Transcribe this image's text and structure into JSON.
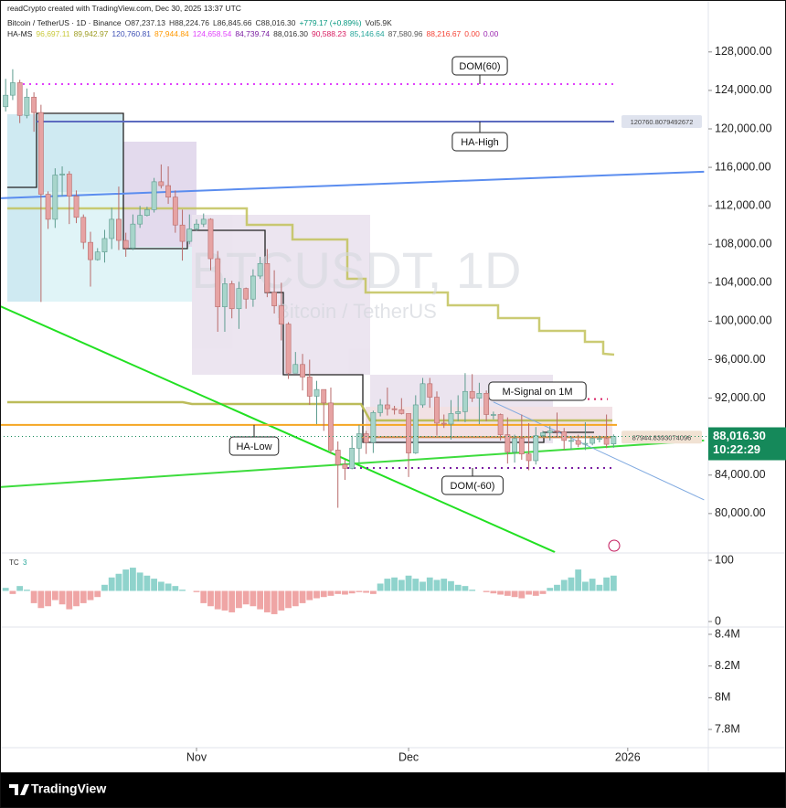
{
  "header": {
    "credit": "readCrypto created with TradingView.com, Dec 30, 2025 13:37 UTC",
    "symbol": "Bitcoin / TetherUS · 1D · Binance",
    "ohlc": [
      "O87,237.13",
      "H88,224.76",
      "L86,845.66",
      "C88,016.30",
      "+779.17 (+0.89%)",
      "Vol5.9K"
    ],
    "indicator": "HA-MS",
    "indicator_values": [
      {
        "text": "96,697.11",
        "color": "#c9c93a"
      },
      {
        "text": "89,942.97",
        "color": "#9e9d24"
      },
      {
        "text": "120,760.81",
        "color": "#3f51b5"
      },
      {
        "text": "87,944.84",
        "color": "#ff9800"
      },
      {
        "text": "124,658.54",
        "color": "#e040fb"
      },
      {
        "text": "84,739.74",
        "color": "#7b1fa2"
      },
      {
        "text": "88,016.30",
        "color": "#333333"
      },
      {
        "text": "90,588.23",
        "color": "#d81b60"
      },
      {
        "text": "85,146.64",
        "color": "#26a69a"
      },
      {
        "text": "87,580.96",
        "color": "#555555"
      },
      {
        "text": "88,216.67",
        "color": "#f44336"
      },
      {
        "text": "0.00",
        "color": "#f44336"
      },
      {
        "text": "0.00",
        "color": "#9c27b0"
      }
    ],
    "watermark": "BTCUSDT, 1D",
    "watermark_sub": "Bitcoin / TetherUS",
    "brand": "TradingView"
  },
  "chart_data": [
    {
      "type": "candlestick",
      "up_color": "#a8d5cb",
      "down_color": "#e6a3a3",
      "x": [
        0,
        1,
        2,
        3,
        4,
        5,
        6,
        7,
        8,
        9,
        10,
        11,
        12,
        13,
        14,
        15,
        16,
        17,
        18,
        19,
        20,
        21,
        22,
        23,
        24,
        25,
        26,
        27,
        28,
        29,
        30,
        31,
        32,
        33,
        34,
        35,
        36,
        37,
        38,
        39,
        40,
        41,
        42,
        43,
        44,
        45,
        46,
        47,
        48,
        49,
        50,
        51,
        52,
        53,
        54,
        55,
        56,
        57,
        58,
        59,
        60,
        61,
        62,
        63,
        64,
        65,
        66,
        67,
        68,
        69,
        70,
        71,
        72,
        73,
        74,
        75,
        76,
        77,
        78,
        79,
        80,
        81,
        82,
        83,
        84,
        85,
        86
      ],
      "open": [
        122300,
        123500,
        124800,
        121400,
        123300,
        121700,
        113200,
        110600,
        115200,
        115300,
        113000,
        110800,
        108200,
        106400,
        107200,
        108600,
        110600,
        108400,
        107600,
        110100,
        111000,
        111600,
        114500,
        114100,
        112900,
        110000,
        108300,
        109600,
        110100,
        110600,
        106500,
        101500,
        103900,
        101300,
        103400,
        102300,
        104700,
        106000,
        103000,
        101600,
        99700,
        94600,
        95500,
        94200,
        92200,
        92900,
        91500,
        86600,
        85100,
        84700,
        86800,
        88300,
        87400,
        90500,
        91300,
        90900,
        90800,
        90400,
        86300,
        91300,
        93500,
        92100,
        89400,
        89300,
        90400,
        90600,
        92700,
        92000,
        92500,
        90300,
        90300,
        88200,
        86400,
        87800,
        86200,
        85500,
        88100,
        88400,
        88600,
        88500,
        87600,
        87600,
        87200,
        87300,
        87800,
        87800,
        87237.13
      ],
      "high": [
        125200,
        126200,
        125100,
        124200,
        123800,
        122500,
        113500,
        115900,
        116100,
        115600,
        113600,
        111100,
        109300,
        107600,
        109500,
        111800,
        114000,
        109200,
        111100,
        112000,
        111900,
        114900,
        116300,
        116100,
        113600,
        111600,
        111100,
        110600,
        111200,
        110700,
        107300,
        104500,
        104200,
        104100,
        103500,
        105400,
        106700,
        107500,
        105300,
        104000,
        99900,
        96800,
        96600,
        96000,
        93800,
        92900,
        93100,
        87500,
        85600,
        88100,
        89200,
        88600,
        90700,
        91900,
        93100,
        91200,
        92000,
        90400,
        92300,
        94100,
        94100,
        92700,
        90300,
        91800,
        92300,
        94600,
        94500,
        93600,
        92800,
        90600,
        90400,
        90000,
        88200,
        90300,
        89400,
        89000,
        88600,
        89100,
        90500,
        88900,
        88000,
        88200,
        89500,
        87900,
        88100,
        90300,
        88224.76
      ],
      "low": [
        121800,
        123000,
        120600,
        121100,
        119700,
        102000,
        109600,
        109700,
        113000,
        110100,
        110200,
        107500,
        103600,
        106300,
        106100,
        107500,
        107400,
        106700,
        107400,
        109700,
        110900,
        111300,
        113800,
        112200,
        109200,
        106300,
        108000,
        109400,
        109800,
        105300,
        98900,
        98900,
        100300,
        99200,
        101300,
        101500,
        104400,
        102500,
        100800,
        98000,
        94000,
        94600,
        92800,
        91300,
        89300,
        88600,
        86200,
        80600,
        83500,
        84600,
        85300,
        86200,
        86300,
        90100,
        90200,
        90300,
        90300,
        83800,
        86200,
        91000,
        91000,
        88100,
        88900,
        87700,
        89600,
        89500,
        91600,
        89300,
        89600,
        89800,
        87600,
        85200,
        85300,
        85600,
        84500,
        85100,
        87900,
        87600,
        87900,
        86600,
        86600,
        86900,
        86600,
        87100,
        87400,
        86800,
        86845.66
      ],
      "close": [
        123500,
        124800,
        121400,
        123300,
        121700,
        113200,
        110600,
        115200,
        115300,
        113000,
        110800,
        108200,
        106400,
        107200,
        108600,
        110600,
        108400,
        107600,
        110100,
        111000,
        111600,
        114500,
        114100,
        112900,
        110000,
        108300,
        109600,
        110100,
        110600,
        106500,
        101500,
        103900,
        101300,
        103400,
        102300,
        104700,
        106000,
        103000,
        101600,
        99700,
        94600,
        95500,
        94200,
        92200,
        92900,
        91500,
        86600,
        85100,
        84700,
        86800,
        88300,
        87400,
        90500,
        91300,
        90900,
        90800,
        90400,
        86300,
        91300,
        93500,
        92100,
        89400,
        89300,
        90400,
        90600,
        92700,
        92000,
        92500,
        90300,
        90300,
        88200,
        86400,
        87800,
        86200,
        85500,
        88100,
        88400,
        88600,
        88500,
        87600,
        87600,
        87200,
        87300,
        87800,
        87800,
        87200,
        88016.3
      ],
      "xlim": [
        -0.8,
        99.4
      ],
      "xticks": [
        {
          "value": 27,
          "label": "Nov"
        },
        {
          "value": 57,
          "label": "Dec"
        },
        {
          "value": 88,
          "label": "2026"
        }
      ],
      "ylim": [
        75900,
        133400
      ],
      "yticks": [
        {
          "value": 80000,
          "label": "80,000.00"
        },
        {
          "value": 84000,
          "label": "84,000.00"
        },
        {
          "value": 88000,
          "label": "88,000.00"
        },
        {
          "value": 92000,
          "label": "92,000.00"
        },
        {
          "value": 96000,
          "label": "96,000.00"
        },
        {
          "value": 100000,
          "label": "100,000.00"
        },
        {
          "value": 104000,
          "label": "104,000.00"
        },
        {
          "value": 108000,
          "label": "108,000.00"
        },
        {
          "value": 112000,
          "label": "112,000.00"
        },
        {
          "value": 116000,
          "label": "116,000.00"
        },
        {
          "value": 120000,
          "label": "120,000.00"
        },
        {
          "value": 124000,
          "label": "124,000.00"
        },
        {
          "value": 128000,
          "label": "128,000.00"
        }
      ],
      "levels": [
        {
          "name": "DOM(60)",
          "value": 124658.54,
          "color": "#e040fb",
          "style": "dotted"
        },
        {
          "name": "HA-High",
          "value": 120760.8079492672,
          "color": "#5c6bc0",
          "style": "solid",
          "show_value": true
        },
        {
          "name": "HA-Low",
          "value": 89217,
          "color": "#f5a623",
          "style": "solid"
        },
        {
          "value": 87944.8393074096,
          "color": "#c98a4b",
          "style": "solid",
          "show_value": true
        },
        {
          "name": "M-Signal on 1M",
          "value": 91900,
          "color": "#d81b60",
          "style": "dotted"
        },
        {
          "name": "DOM(-60)",
          "value": 84739.74,
          "color": "#7b1fa2",
          "style": "dotted"
        }
      ],
      "trendlines": [
        {
          "color": "#5b8def",
          "width": 2,
          "x": [
            -0.8,
            98.8
          ],
          "values": [
            112790,
            115548
          ]
        },
        {
          "color": "#22e022",
          "width": 2,
          "x": [
            -0.8,
            77.7
          ],
          "values": [
            101574,
            75990
          ]
        },
        {
          "color": "#3ddc3d",
          "width": 2,
          "x": [
            -0.8,
            98.8
          ],
          "values": [
            82753,
            87600
          ]
        },
        {
          "color": "#7fa9e0",
          "width": 1,
          "x": [
            69,
            98.8
          ],
          "values": [
            91600,
            81424
          ]
        }
      ],
      "price_tag": {
        "value": 88016.3,
        "label": "88,016.30",
        "color": "#15895a"
      },
      "countdown": "10:22:29"
    },
    {
      "type": "bar",
      "title": "TC",
      "subtitle": "3",
      "baseline": 50,
      "color_up": "#8fd3cc",
      "color_down": "#efa5a5",
      "values": [
        55,
        45,
        58,
        52,
        30,
        22,
        25,
        35,
        28,
        20,
        25,
        30,
        35,
        40,
        60,
        72,
        78,
        85,
        88,
        80,
        75,
        70,
        65,
        62,
        58,
        52,
        50,
        48,
        30,
        25,
        20,
        18,
        15,
        22,
        28,
        25,
        20,
        15,
        12,
        18,
        22,
        25,
        30,
        35,
        38,
        40,
        42,
        45,
        44,
        46,
        48,
        47,
        45,
        62,
        70,
        72,
        68,
        75,
        70,
        65,
        72,
        68,
        70,
        66,
        60,
        58,
        52,
        50,
        48,
        46,
        44,
        42,
        40,
        38,
        44,
        42,
        45,
        55,
        60,
        68,
        72,
        85,
        65,
        70,
        60,
        72,
        75
      ],
      "ylim": [
        -9,
        112
      ],
      "yticks": [
        0,
        100
      ]
    },
    {
      "type": "line",
      "ylim": [
        7685000,
        8446000
      ],
      "yticks": [
        {
          "value": 7800000,
          "label": "7.8M"
        },
        {
          "value": 8000000,
          "label": "8M"
        },
        {
          "value": 8200000,
          "label": "8.2M"
        },
        {
          "value": 8400000,
          "label": "8.4M"
        }
      ]
    }
  ]
}
